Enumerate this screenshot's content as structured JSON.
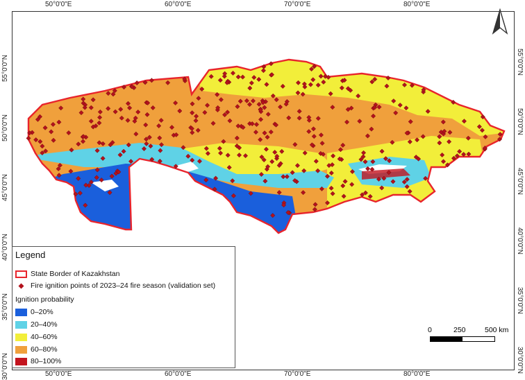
{
  "longitude_labels": [
    "50°0'0\"E",
    "60°0'0\"E",
    "70°0'0\"E",
    "80°0'0\"E"
  ],
  "latitude_labels": [
    "55°0'0\"N",
    "50°0'0\"N",
    "45°0'0\"N",
    "40°0'0\"N",
    "35°0'0\"N",
    "30°0'0\"N"
  ],
  "legend": {
    "title": "Legend",
    "border_label": "State Border of Kazakhstan",
    "points_label": "Fire ignition points of 2023–24 fire season (validation set)",
    "probability_title": "Ignition probability",
    "classes": [
      {
        "label": "0–20%",
        "color": "#1a5fdc"
      },
      {
        "label": "20–40%",
        "color": "#5fd2e6"
      },
      {
        "label": "40–60%",
        "color": "#f2ee3a"
      },
      {
        "label": "60–80%",
        "color": "#f0a03c"
      },
      {
        "label": "80–100%",
        "color": "#c3141e"
      }
    ]
  },
  "scale_bar": {
    "labels": [
      "0",
      "250",
      "500 km"
    ]
  },
  "colors": {
    "border": "#e8242c",
    "points": "#b3121c"
  }
}
